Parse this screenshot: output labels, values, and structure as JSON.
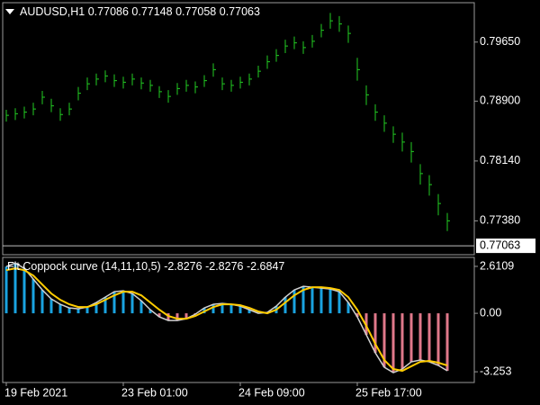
{
  "chart_data": [
    {
      "type": "ohlc",
      "symbol": "AUDUSD,H1",
      "quote": [
        0.77086,
        0.77148,
        0.77058,
        0.77063
      ],
      "current_price": 0.77063,
      "color": "#22cc22",
      "price_line_color": "#c0c0c0",
      "categories": [
        "19 Feb 2021",
        null,
        null,
        null,
        null,
        null,
        null,
        null,
        null,
        null,
        null,
        null,
        null,
        "23 Feb 01:00",
        null,
        null,
        null,
        null,
        null,
        null,
        null,
        null,
        null,
        null,
        null,
        null,
        "24 Feb 09:00",
        null,
        null,
        null,
        null,
        null,
        null,
        null,
        null,
        null,
        null,
        null,
        null,
        "25 Feb 17:00",
        null,
        null,
        null,
        null,
        null,
        null,
        null,
        null,
        null,
        null
      ],
      "close": [
        0.7872,
        0.7874,
        0.7876,
        0.788,
        0.7895,
        0.7884,
        0.7873,
        0.788,
        0.79,
        0.7912,
        0.7918,
        0.7922,
        0.7916,
        0.7914,
        0.7918,
        0.7913,
        0.791,
        0.7902,
        0.7896,
        0.7906,
        0.791,
        0.7908,
        0.7916,
        0.793,
        0.7912,
        0.791,
        0.7914,
        0.7918,
        0.7928,
        0.794,
        0.7948,
        0.796,
        0.7964,
        0.7958,
        0.7966,
        0.798,
        0.7992,
        0.7988,
        0.7976,
        0.793,
        0.7898,
        0.7876,
        0.7862,
        0.7848,
        0.7838,
        0.7826,
        0.7798,
        0.7784,
        0.776,
        0.7738
      ],
      "high": [
        0.7879,
        0.7881,
        0.7883,
        0.7888,
        0.7903,
        0.7893,
        0.7881,
        0.7888,
        0.7908,
        0.792,
        0.7925,
        0.7929,
        0.7924,
        0.7921,
        0.7925,
        0.792,
        0.7917,
        0.7909,
        0.7904,
        0.7913,
        0.7917,
        0.7915,
        0.7923,
        0.7938,
        0.792,
        0.7917,
        0.7921,
        0.7925,
        0.7935,
        0.7948,
        0.7956,
        0.7968,
        0.7972,
        0.7966,
        0.7974,
        0.7988,
        0.8002,
        0.7998,
        0.7986,
        0.7945,
        0.791,
        0.7886,
        0.7872,
        0.7858,
        0.785,
        0.7838,
        0.781,
        0.7796,
        0.7772,
        0.7748
      ],
      "low": [
        0.7864,
        0.7866,
        0.7868,
        0.7872,
        0.7886,
        0.7876,
        0.7865,
        0.7872,
        0.7891,
        0.7904,
        0.791,
        0.7914,
        0.7908,
        0.7906,
        0.791,
        0.7905,
        0.7902,
        0.7894,
        0.7888,
        0.7898,
        0.7902,
        0.79,
        0.7908,
        0.7921,
        0.7904,
        0.7902,
        0.7906,
        0.791,
        0.792,
        0.7931,
        0.794,
        0.7951,
        0.7956,
        0.795,
        0.7958,
        0.7971,
        0.7982,
        0.7978,
        0.7964,
        0.7916,
        0.7885,
        0.7865,
        0.7851,
        0.7837,
        0.7826,
        0.7812,
        0.7784,
        0.777,
        0.7745,
        0.7725
      ],
      "ylim": [
        0.7695,
        0.8015
      ],
      "yticks": [
        {
          "value": 0.7965,
          "label": "0.79650"
        },
        {
          "value": 0.789,
          "label": "0.78900"
        },
        {
          "value": 0.7814,
          "label": "0.78140"
        },
        {
          "value": 0.7738,
          "label": "0.77380"
        }
      ]
    },
    {
      "type": "histogram-lines",
      "title": "Fit Coppock curve",
      "params": "(14,11,10,5)",
      "indicator_values": [
        -2.8276,
        -2.8276,
        -2.6847
      ],
      "up_color": "#1aa3e0",
      "down_color": "#e0788a",
      "series": [
        {
          "name": "Coppock",
          "color": "#d0d0d0",
          "values": [
            2.6,
            2.8,
            2.5,
            1.9,
            1.3,
            0.8,
            0.5,
            0.3,
            0.25,
            0.35,
            0.6,
            0.9,
            1.2,
            1.25,
            1.1,
            0.7,
            0.2,
            -0.2,
            -0.4,
            -0.4,
            -0.3,
            -0.05,
            0.3,
            0.5,
            0.55,
            0.5,
            0.4,
            0.2,
            0.0,
            0.05,
            0.4,
            0.9,
            1.3,
            1.5,
            1.45,
            1.4,
            1.35,
            1.2,
            0.6,
            -0.2,
            -1.2,
            -2.2,
            -3.0,
            -3.3,
            -3.1,
            -2.7,
            -2.6,
            -2.7,
            -2.9,
            -3.2
          ]
        },
        {
          "name": "Signal",
          "color": "#ffcc00",
          "values": [
            2.4,
            2.5,
            2.4,
            2.1,
            1.6,
            1.1,
            0.75,
            0.5,
            0.35,
            0.35,
            0.5,
            0.75,
            1.0,
            1.2,
            1.2,
            1.0,
            0.6,
            0.2,
            -0.15,
            -0.3,
            -0.3,
            -0.15,
            0.1,
            0.35,
            0.5,
            0.5,
            0.45,
            0.3,
            0.1,
            0.0,
            0.2,
            0.6,
            1.0,
            1.3,
            1.45,
            1.45,
            1.4,
            1.3,
            0.9,
            0.2,
            -0.7,
            -1.7,
            -2.6,
            -3.1,
            -3.2,
            -2.95,
            -2.7,
            -2.65,
            -2.75,
            -2.9
          ]
        }
      ],
      "ylim": [
        -3.85,
        3.11
      ],
      "yticks": [
        2.6109,
        {
          "value": 0,
          "label": "0.00"
        },
        -3.253
      ]
    }
  ]
}
